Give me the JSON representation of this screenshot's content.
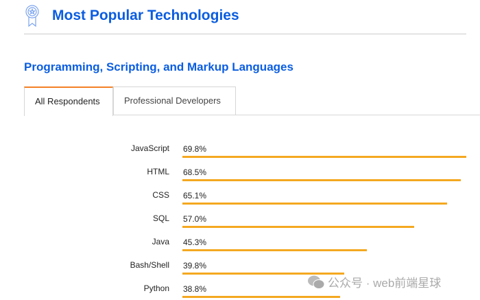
{
  "header": {
    "title": "Most Popular Technologies",
    "icon": "award-ribbon-icon"
  },
  "section": {
    "title": "Programming, Scripting, and Markup Languages"
  },
  "tabs": [
    {
      "label": "All Respondents",
      "active": true
    },
    {
      "label": "Professional Developers",
      "active": false
    }
  ],
  "colors": {
    "accent": "#0a5de0",
    "bar": "#f4a820",
    "tab_active": "#f48024"
  },
  "chart_data": {
    "type": "bar",
    "orientation": "horizontal",
    "categories": [
      "JavaScript",
      "HTML",
      "CSS",
      "SQL",
      "Java",
      "Bash/Shell",
      "Python"
    ],
    "values": [
      69.8,
      68.5,
      65.1,
      57.0,
      45.3,
      39.8,
      38.8
    ],
    "value_labels": [
      "69.8%",
      "68.5%",
      "65.1%",
      "57.0%",
      "45.3%",
      "39.8%",
      "38.8%"
    ],
    "xlim": [
      0,
      69.8
    ],
    "grid": false
  },
  "watermark": "公众号 · web前端星球"
}
